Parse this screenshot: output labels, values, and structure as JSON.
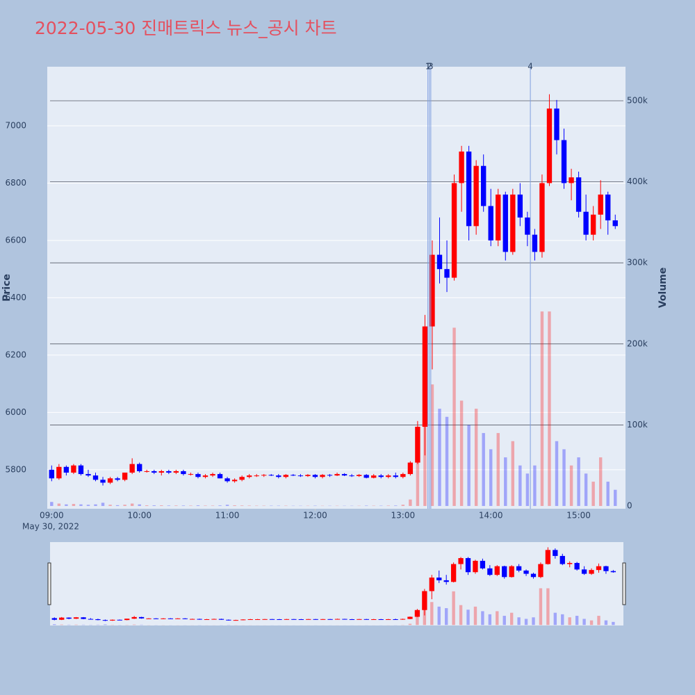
{
  "chart_data": {
    "type": "candlestick",
    "title": "2022-05-30 진매트릭스 뉴스_공시 차트",
    "y_label": "Price",
    "y2_label": "Volume",
    "x_date_label": "May 30, 2022",
    "increasing_color": "#ff0000",
    "decreasing_color": "#0000ff",
    "x": [
      "09:00",
      "09:05",
      "09:10",
      "09:15",
      "09:20",
      "09:25",
      "09:30",
      "09:35",
      "09:40",
      "09:45",
      "09:50",
      "09:55",
      "10:00",
      "10:05",
      "10:10",
      "10:15",
      "10:20",
      "10:25",
      "10:30",
      "10:35",
      "10:40",
      "10:45",
      "10:50",
      "10:55",
      "11:00",
      "11:05",
      "11:10",
      "11:15",
      "11:20",
      "11:25",
      "11:30",
      "11:35",
      "11:40",
      "11:45",
      "11:50",
      "11:55",
      "12:00",
      "12:05",
      "12:10",
      "12:15",
      "12:20",
      "12:25",
      "12:30",
      "12:35",
      "12:40",
      "12:45",
      "12:50",
      "12:55",
      "13:00",
      "13:05",
      "13:10",
      "13:15",
      "13:20",
      "13:25",
      "13:30",
      "13:35",
      "13:40",
      "13:45",
      "13:50",
      "13:55",
      "14:00",
      "14:05",
      "14:10",
      "14:15",
      "14:20",
      "14:25",
      "14:30",
      "14:35",
      "14:40",
      "14:45",
      "14:50",
      "14:55",
      "15:00",
      "15:05",
      "15:10",
      "15:15",
      "15:20",
      "15:25"
    ],
    "open": [
      5800,
      5770,
      5810,
      5790,
      5815,
      5785,
      5780,
      5765,
      5755,
      5770,
      5765,
      5790,
      5820,
      5795,
      5795,
      5790,
      5795,
      5790,
      5795,
      5785,
      5785,
      5775,
      5780,
      5785,
      5770,
      5760,
      5765,
      5775,
      5780,
      5780,
      5782,
      5780,
      5775,
      5782,
      5780,
      5778,
      5782,
      5775,
      5782,
      5780,
      5785,
      5780,
      5778,
      5782,
      5772,
      5780,
      5775,
      5780,
      5775,
      5785,
      5825,
      5950,
      6300,
      6550,
      6500,
      6470,
      6800,
      6910,
      6650,
      6860,
      6720,
      6600,
      6760,
      6560,
      6760,
      6680,
      6620,
      6560,
      6800,
      7060,
      6950,
      6800,
      6820,
      6700,
      6620,
      6690,
      6760,
      6670
    ],
    "high": [
      5815,
      5820,
      5815,
      5820,
      5820,
      5800,
      5790,
      5775,
      5775,
      5775,
      5790,
      5840,
      5825,
      5800,
      5800,
      5800,
      5800,
      5800,
      5800,
      5790,
      5790,
      5785,
      5790,
      5790,
      5775,
      5770,
      5780,
      5785,
      5785,
      5785,
      5785,
      5785,
      5785,
      5785,
      5785,
      5785,
      5785,
      5785,
      5785,
      5790,
      5788,
      5785,
      5785,
      5785,
      5785,
      5785,
      5785,
      5790,
      5790,
      5830,
      5970,
      6340,
      6600,
      6680,
      6600,
      6830,
      6930,
      6930,
      6880,
      6900,
      6780,
      6780,
      6770,
      6780,
      6800,
      6700,
      6640,
      6830,
      7110,
      7090,
      6990,
      6850,
      6840,
      6760,
      6720,
      6810,
      6770,
      6690
    ],
    "low": [
      5760,
      5765,
      5780,
      5785,
      5780,
      5775,
      5760,
      5745,
      5750,
      5760,
      5760,
      5785,
      5790,
      5790,
      5785,
      5780,
      5785,
      5785,
      5780,
      5780,
      5770,
      5770,
      5775,
      5770,
      5755,
      5755,
      5760,
      5770,
      5775,
      5775,
      5778,
      5770,
      5770,
      5778,
      5775,
      5775,
      5770,
      5770,
      5775,
      5778,
      5778,
      5775,
      5775,
      5770,
      5770,
      5770,
      5770,
      5770,
      5770,
      5780,
      5820,
      5850,
      6150,
      6450,
      6420,
      6460,
      6700,
      6600,
      6620,
      6700,
      6580,
      6580,
      6530,
      6550,
      6650,
      6580,
      6530,
      6540,
      6790,
      6900,
      6780,
      6740,
      6680,
      6600,
      6600,
      6640,
      6620,
      6640
    ],
    "close": [
      5770,
      5810,
      5790,
      5815,
      5785,
      5780,
      5765,
      5755,
      5770,
      5765,
      5790,
      5820,
      5795,
      5795,
      5790,
      5795,
      5790,
      5795,
      5785,
      5785,
      5775,
      5780,
      5785,
      5770,
      5760,
      5765,
      5775,
      5780,
      5780,
      5782,
      5780,
      5775,
      5782,
      5780,
      5778,
      5782,
      5775,
      5782,
      5780,
      5785,
      5780,
      5778,
      5782,
      5772,
      5780,
      5775,
      5780,
      5775,
      5785,
      5825,
      5950,
      6300,
      6550,
      6500,
      6470,
      6800,
      6910,
      6650,
      6860,
      6720,
      6600,
      6760,
      6560,
      6760,
      6680,
      6620,
      6560,
      6800,
      7060,
      6950,
      6800,
      6820,
      6700,
      6620,
      6690,
      6760,
      6670,
      6650
    ],
    "volume": [
      5000,
      3000,
      2000,
      2500,
      2000,
      1500,
      2000,
      4000,
      1500,
      1000,
      1500,
      3000,
      2000,
      800,
      800,
      800,
      600,
      600,
      600,
      500,
      800,
      500,
      500,
      700,
      1500,
      800,
      600,
      500,
      400,
      400,
      400,
      400,
      400,
      300,
      300,
      300,
      400,
      300,
      300,
      300,
      300,
      300,
      300,
      500,
      400,
      400,
      500,
      600,
      1500,
      8000,
      60000,
      200000,
      150000,
      120000,
      110000,
      220000,
      130000,
      100000,
      120000,
      90000,
      70000,
      90000,
      60000,
      80000,
      50000,
      40000,
      50000,
      240000,
      240000,
      80000,
      70000,
      50000,
      60000,
      40000,
      30000,
      60000,
      30000,
      20000
    ],
    "xlim": [
      "08:57",
      "15:32"
    ],
    "xticks": [
      "09:00",
      "10:00",
      "11:00",
      "12:00",
      "13:00",
      "14:00",
      "15:00"
    ],
    "ylim": [
      5664,
      7206
    ],
    "yticks": [
      5800,
      6000,
      6200,
      6400,
      6600,
      6800,
      7000
    ],
    "y2lim": [
      -3400,
      542000
    ],
    "y2ticks": [
      {
        "value": 0,
        "label": "0"
      },
      {
        "value": 100000,
        "label": "100k"
      },
      {
        "value": 200000,
        "label": "200k"
      },
      {
        "value": 300000,
        "label": "300k"
      },
      {
        "value": 400000,
        "label": "400k"
      },
      {
        "value": 500000,
        "label": "500k"
      }
    ],
    "events": [
      {
        "x": "13:17",
        "label": "1"
      },
      {
        "x": "13:18",
        "label": "2"
      },
      {
        "x": "13:19",
        "label": "3"
      },
      {
        "x": "14:27",
        "label": "4"
      }
    ],
    "grid": true
  }
}
